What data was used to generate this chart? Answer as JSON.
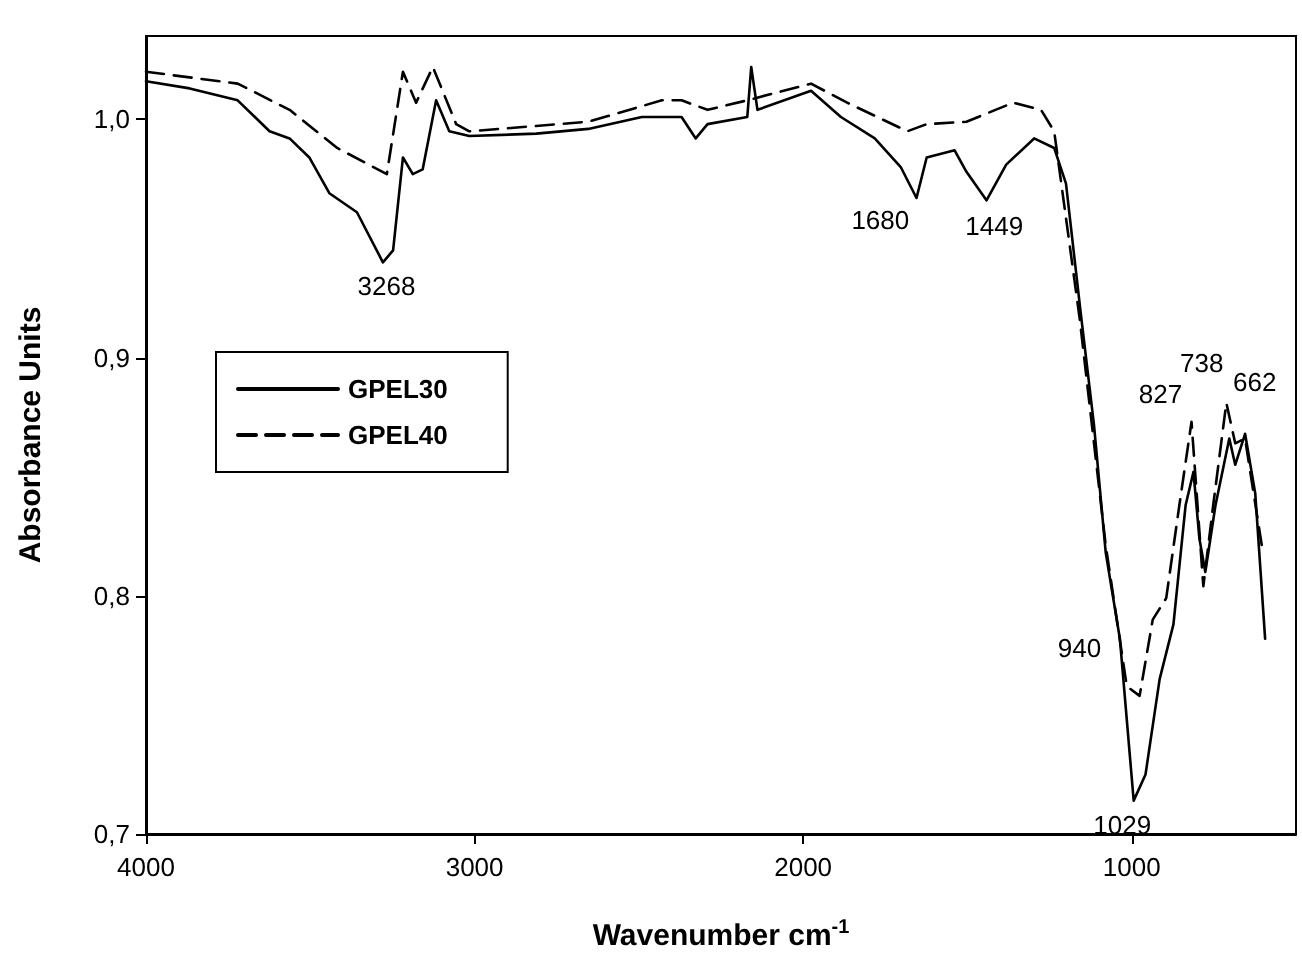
{
  "chart_data": {
    "type": "line",
    "xlabel": "Wavenumber cm$^{-1}$",
    "ylabel": "Absorbance Units",
    "xlim": [
      4000,
      500
    ],
    "xticks": [
      4000,
      3000,
      2000,
      1000
    ],
    "ylim": [
      0.7,
      1.035
    ],
    "yticks": [
      {
        "value": 0.7,
        "label": "0,7"
      },
      {
        "value": 0.8,
        "label": "0,8"
      },
      {
        "value": 0.9,
        "label": "0,9"
      },
      {
        "value": 1.0,
        "label": "1,0"
      }
    ],
    "grid": false,
    "legend": "left",
    "marker": "none",
    "series": [
      {
        "name": "GPEL30",
        "color": "#000000",
        "line_style": "solid",
        "x": [
          4000,
          3867,
          3721,
          3624,
          3563,
          3503,
          3442,
          3358,
          3279,
          3248,
          3218,
          3188,
          3158,
          3117,
          3077,
          3016,
          2812,
          2654,
          2491,
          2370,
          2327,
          2291,
          2170,
          2158,
          2139,
          1976,
          1885,
          1782,
          1703,
          1655,
          1624,
          1539,
          1503,
          1442,
          1382,
          1297,
          1236,
          1200,
          1158,
          1115,
          1079,
          1036,
          994,
          958,
          915,
          873,
          836,
          812,
          794,
          776,
          745,
          703,
          685,
          655,
          624,
          594
        ],
        "values": [
          1.016,
          1.013,
          1.008,
          0.995,
          0.992,
          0.984,
          0.969,
          0.961,
          0.94,
          0.945,
          0.984,
          0.977,
          0.979,
          1.008,
          0.995,
          0.993,
          0.994,
          0.996,
          1.001,
          1.001,
          0.992,
          0.998,
          1.001,
          1.022,
          1.004,
          1.012,
          1.001,
          0.992,
          0.98,
          0.967,
          0.984,
          0.987,
          0.978,
          0.966,
          0.981,
          0.992,
          0.988,
          0.973,
          0.922,
          0.872,
          0.818,
          0.782,
          0.714,
          0.725,
          0.765,
          0.788,
          0.838,
          0.852,
          0.824,
          0.81,
          0.838,
          0.866,
          0.855,
          0.868,
          0.843,
          0.782
        ]
      },
      {
        "name": "GPEL40",
        "color": "#000000",
        "line_style": "dashed",
        "x": [
          4000,
          3721,
          3563,
          3418,
          3267,
          3218,
          3178,
          3127,
          3056,
          3016,
          2654,
          2430,
          2370,
          2291,
          2170,
          1976,
          1866,
          1683,
          1624,
          1503,
          1361,
          1276,
          1236,
          1158,
          1079,
          1015,
          976,
          936,
          895,
          855,
          818,
          782,
          752,
          712,
          685,
          655,
          604
        ],
        "values": [
          1.02,
          1.015,
          1.004,
          0.988,
          0.977,
          1.02,
          1.007,
          1.022,
          0.998,
          0.995,
          0.999,
          1.008,
          1.008,
          1.004,
          1.008,
          1.015,
          1.007,
          0.995,
          0.998,
          0.999,
          1.007,
          1.004,
          0.995,
          0.916,
          0.821,
          0.762,
          0.758,
          0.79,
          0.799,
          0.838,
          0.873,
          0.804,
          0.838,
          0.881,
          0.864,
          0.866,
          0.821
        ]
      }
    ],
    "annotations": [
      {
        "text": "3268",
        "x": 3268,
        "y": 0.94
      },
      {
        "text": "1680",
        "x": 1680,
        "y": 0.967
      },
      {
        "text": "1449",
        "x": 1449,
        "y": 0.966
      },
      {
        "text": "1029",
        "x": 1029,
        "y": 0.714
      },
      {
        "text": "940",
        "x": 940,
        "y": 0.79
      },
      {
        "text": "827",
        "x": 827,
        "y": 0.873
      },
      {
        "text": "738",
        "x": 738,
        "y": 0.881
      },
      {
        "text": "662",
        "x": 662,
        "y": 0.868
      }
    ]
  }
}
